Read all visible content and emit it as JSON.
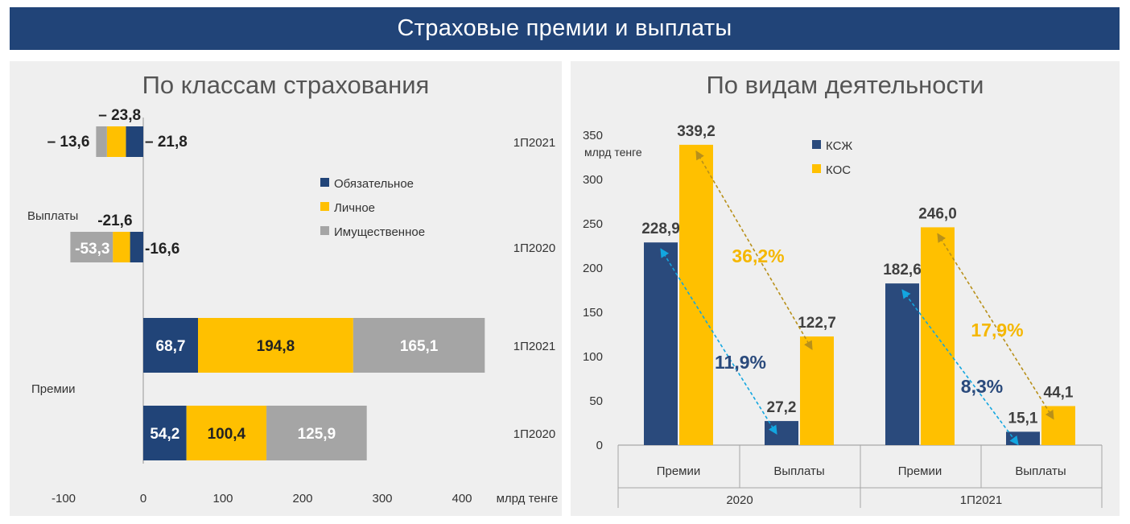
{
  "banner": {
    "title": "Страховые премии и выплаты"
  },
  "colors": {
    "banner": "#214478",
    "panel": "#efefef",
    "compulsory": "#214478",
    "personal": "#ffc000",
    "property": "#a5a5a5",
    "ksj": "#2a4a7c",
    "kos": "#ffc000",
    "arrow_blue": "#12a6e0",
    "arrow_gold": "#b8901a",
    "pct_gold": "#f5b700",
    "pct_blue": "#2a4a7c"
  },
  "chart_data": [
    {
      "type": "bar",
      "orientation": "horizontal",
      "stacked": true,
      "title": "По классам страхования",
      "xlabel": "млрд тенге",
      "xlim": [
        -100,
        400
      ],
      "xticks": [
        -100,
        0,
        100,
        200,
        300,
        400
      ],
      "legend_position": "right",
      "series": [
        {
          "name": "Обязательное",
          "color_key": "compulsory"
        },
        {
          "name": "Личное",
          "color_key": "personal"
        },
        {
          "name": "Имущественное",
          "color_key": "property"
        }
      ],
      "groups": [
        {
          "label": "Выплаты",
          "bars": [
            {
              "period": "1П2021",
              "values": [
                -21.8,
                -23.8,
                -13.6
              ],
              "labels": [
                "– 21,8",
                "– 23,8",
                "– 13,6"
              ]
            },
            {
              "period": "1П2020",
              "values": [
                -16.6,
                -21.6,
                -53.3
              ],
              "labels": [
                "-16,6",
                "-21,6",
                "-53,3"
              ]
            }
          ]
        },
        {
          "label": "Премии",
          "bars": [
            {
              "period": "1П2021",
              "values": [
                68.7,
                194.8,
                165.1
              ],
              "labels": [
                "68,7",
                "194,8",
                "165,1"
              ]
            },
            {
              "period": "1П2020",
              "values": [
                54.2,
                100.4,
                125.9
              ],
              "labels": [
                "54,2",
                "100,4",
                "125,9"
              ]
            }
          ]
        }
      ]
    },
    {
      "type": "bar",
      "title": "По видам деятельности",
      "ylabel": "млрд тенге",
      "ylim": [
        0,
        350
      ],
      "yticks": [
        0,
        50,
        100,
        150,
        200,
        250,
        300,
        350
      ],
      "legend_position": "top-right",
      "groups": [
        "2020",
        "1П2021"
      ],
      "categories": [
        "Премии",
        "Выплаты",
        "Премии",
        "Выплаты"
      ],
      "series": [
        {
          "name": "КСЖ",
          "color_key": "ksj",
          "values": [
            228.9,
            27.2,
            182.6,
            15.1
          ],
          "labels": [
            "228,9",
            "27,2",
            "182,6",
            "15,1"
          ]
        },
        {
          "name": "КОС",
          "color_key": "kos",
          "values": [
            339.2,
            122.7,
            246.0,
            44.1
          ],
          "labels": [
            "339,2",
            "122,7",
            "246,0",
            "44,1"
          ]
        }
      ],
      "annotations": [
        {
          "text": "36,2%",
          "series": "КОС",
          "group": "2020"
        },
        {
          "text": "11,9%",
          "series": "КСЖ",
          "group": "2020"
        },
        {
          "text": "17,9%",
          "series": "КОС",
          "group": "1П2021"
        },
        {
          "text": "8,3%",
          "series": "КСЖ",
          "group": "1П2021"
        }
      ]
    }
  ]
}
